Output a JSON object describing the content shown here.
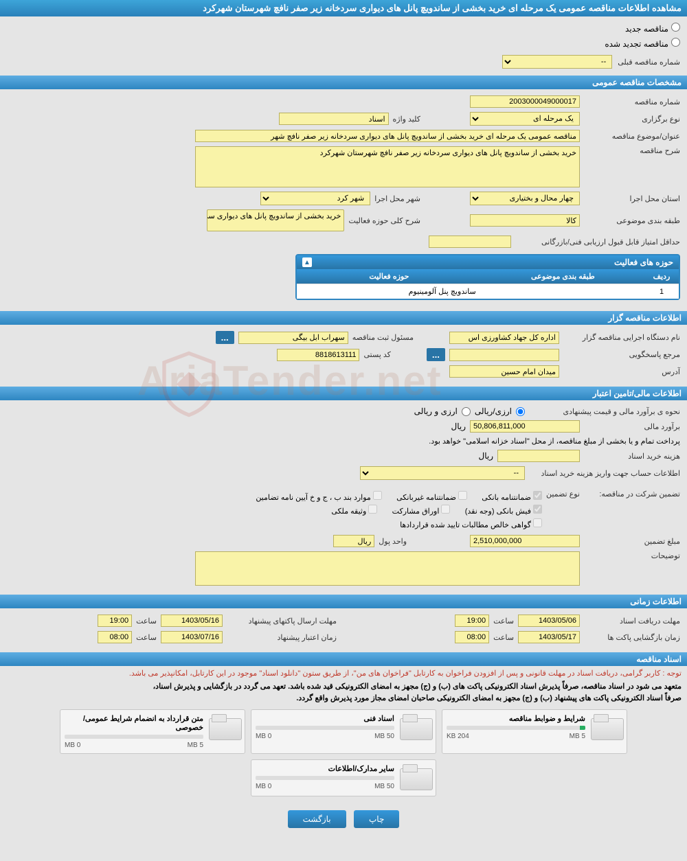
{
  "page_title": "مشاهده اطلاعات مناقصه عمومی یک مرحله ای خرید بخشی از ساندویچ پانل های دیواری سردخانه زیر صفر نافچ شهرستان شهرکرد",
  "tender_status": {
    "new_label": "مناقصه جدید",
    "renewed_label": "مناقصه تجدید شده",
    "prev_label": "شماره مناقصه قبلی",
    "prev_value": "--"
  },
  "sections": {
    "general": "مشخصات مناقصه عمومی",
    "organizer": "اطلاعات مناقصه گزار",
    "financial": "اطلاعات مالی/تامین اعتبار",
    "timing": "اطلاعات زمانی",
    "documents": "اسناد مناقصه"
  },
  "general": {
    "tender_no_label": "شماره مناقصه",
    "tender_no": "2003000049000017",
    "type_label": "نوع برگزاری",
    "type_value": "یک مرحله ای",
    "keyword_label": "کلید واژه",
    "keyword_value": "اسناد",
    "subject_label": "عنوان/موضوع مناقصه",
    "subject_value": "مناقصه عمومی یک مرحله ای خرید بخشی از ساندویچ پانل های دیواری سردخانه زیر صفر نافچ شهر",
    "desc_label": "شرح مناقصه",
    "desc_value": "خرید بخشی از ساندویچ پانل های دیواری سردخانه زیر صفر نافچ شهرستان شهرکرد",
    "province_label": "استان محل اجرا",
    "province_value": "چهار محال و بختیاری",
    "city_label": "شهر محل اجرا",
    "city_value": "شهر کرد",
    "category_label": "طبقه بندی موضوعی",
    "category_value": "کالا",
    "scope_label": "شرح کلی حوزه فعالیت",
    "scope_value": "خرید بخشی از ساندویچ پانل های دیواری سردخانه",
    "min_score_label": "حداقل امتیاز قابل قبول ارزیابی فنی/بازرگانی"
  },
  "activity_table": {
    "title": "حوزه های فعالیت",
    "col_row": "ردیف",
    "col_category": "طبقه بندی موضوعی",
    "col_activity": "حوزه فعالیت",
    "rows": [
      {
        "idx": "1",
        "category": "",
        "activity": "ساندویچ پنل آلومینیوم"
      }
    ]
  },
  "organizer": {
    "org_name_label": "نام دستگاه اجرایی مناقصه گزار",
    "org_name": "اداره کل جهاد کشاورزی اس",
    "registrar_label": "مسئول ثبت مناقصه",
    "registrar": "سهراب ابل بیگی",
    "responder_label": "مرجع پاسخگویی",
    "postal_label": "کد پستی",
    "postal": "8818613111",
    "address_label": "آدرس",
    "address": "میدان امام حسین"
  },
  "financial": {
    "estimate_method_label": "نحوه ی برآورد مالی و  قیمت پیشنهادی",
    "currency_rial": "ارزی/ریالی",
    "currency_foreign": "ارزی و ریالی",
    "estimate_label": "برآورد مالی",
    "estimate_value": "50,806,811,000",
    "rial": "ریال",
    "payment_note": "پرداخت تمام و یا بخشی از مبلغ مناقصه، از محل \"اسناد خزانه اسلامی\" خواهد بود.",
    "doc_cost_label": "هزینه خرید اسناد",
    "acct_info_label": "اطلاعات حساب جهت واریز هزینه خرید اسناد",
    "acct_value": "--",
    "guarantee_label": "تضمین شرکت در مناقصه:",
    "guarantee_type_label": "نوع تضمین",
    "gt_bank": "ضمانتنامه بانکی",
    "gt_nonbank": "ضمانتنامه غیربانکی",
    "gt_bylaw": "موارد بند ب ، ج و خ آیین نامه تضامین",
    "gt_cash": "فیش بانکی (وجه نقد)",
    "gt_bonds": "اوراق مشارکت",
    "gt_property": "وثیقه ملکی",
    "gt_receivable": "گواهی خالص مطالبات تایید شده قراردادها",
    "guarantee_amt_label": "مبلغ تضمین",
    "guarantee_amt": "2,510,000,000",
    "unit_label": "واحد پول",
    "unit_value": "ریال",
    "remarks_label": "توضیحات"
  },
  "timing": {
    "doc_deadline_label": "مهلت دریافت اسناد",
    "doc_deadline_date": "1403/05/06",
    "doc_deadline_time": "19:00",
    "submit_deadline_label": "مهلت ارسال پاکتهای پیشنهاد",
    "submit_deadline_date": "1403/05/16",
    "submit_deadline_time": "19:00",
    "open_label": "زمان بازگشایی پاکت ها",
    "open_date": "1403/05/17",
    "open_time": "08:00",
    "validity_label": "زمان اعتبار پیشنهاد",
    "validity_date": "1403/07/16",
    "validity_time": "08:00",
    "time_word": "ساعت"
  },
  "doc_notes": {
    "red": "توجه : کاربر گرامی، دریافت اسناد در مهلت قانونی و پس از افزودن فراخوان به کارتابل \"فراخوان های من\"، از طریق ستون \"دانلود اسناد\" موجود در این کارتابل، امکانپذیر می باشد.",
    "black1": "متعهد می شود در اسناد مناقصه، صرفاً پذیرش اسناد الکترونیکی پاکت های (ب) و (ج) مجهز به امضای الکترونیکی قید شده باشد. تعهد می گردد در بازگشایی و پذیرش اسناد،",
    "black2": "صرفاً اسناد الکترونیکی پاکت های پیشنهاد (ب) و (ج) مجهز به امضای الکترونیکی صاحبان امضای مجاز مورد پذیرش واقع گردد."
  },
  "files": [
    {
      "title": "شرایط و ضوابط مناقصه",
      "used": "204 KB",
      "total": "5 MB",
      "fill_pct": 4
    },
    {
      "title": "اسناد فنی",
      "used": "0 MB",
      "total": "50 MB",
      "fill_pct": 0
    },
    {
      "title": "متن قرارداد به انضمام شرایط عمومی/خصوصی",
      "used": "0 MB",
      "total": "5 MB",
      "fill_pct": 0
    },
    {
      "title": "سایر مدارک/اطلاعات",
      "used": "0 MB",
      "total": "50 MB",
      "fill_pct": 0
    }
  ],
  "buttons": {
    "print": "چاپ",
    "back": "بازگشت"
  },
  "watermark": "AriaTender.net"
}
